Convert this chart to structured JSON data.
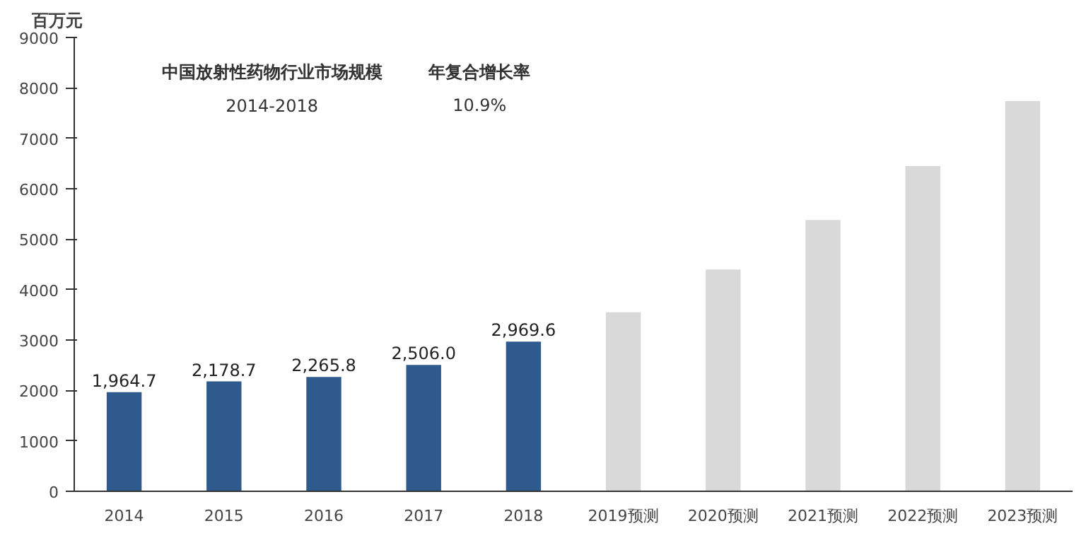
{
  "chart_data": {
    "type": "bar",
    "ylabel": "百万元",
    "categories": [
      "2014",
      "2015",
      "2016",
      "2017",
      "2018",
      "2019预测",
      "2020预测",
      "2021预测",
      "2022预测",
      "2023预测"
    ],
    "values": [
      1964.7,
      2178.7,
      2265.8,
      2506.0,
      2969.6,
      3550,
      4400,
      5380,
      6450,
      7740
    ],
    "colors": [
      "#2e5a8e",
      "#2e5a8e",
      "#2e5a8e",
      "#2e5a8e",
      "#2e5a8e",
      "#d9d9d9",
      "#d9d9d9",
      "#d9d9d9",
      "#d9d9d9",
      "#d9d9d9"
    ],
    "value_labels": [
      "1,964.7",
      "2,178.7",
      "2,265.8",
      "2,506.0",
      "2,969.6",
      null,
      null,
      null,
      null,
      null
    ],
    "ylim": [
      0,
      9000
    ],
    "yticks": [
      0,
      1000,
      2000,
      3000,
      4000,
      5000,
      6000,
      7000,
      8000,
      9000
    ],
    "grid": false,
    "annotations": [
      "中国放射性药物行业市场规模",
      "年复合增长率",
      "2014-2018",
      "10.9%"
    ]
  }
}
